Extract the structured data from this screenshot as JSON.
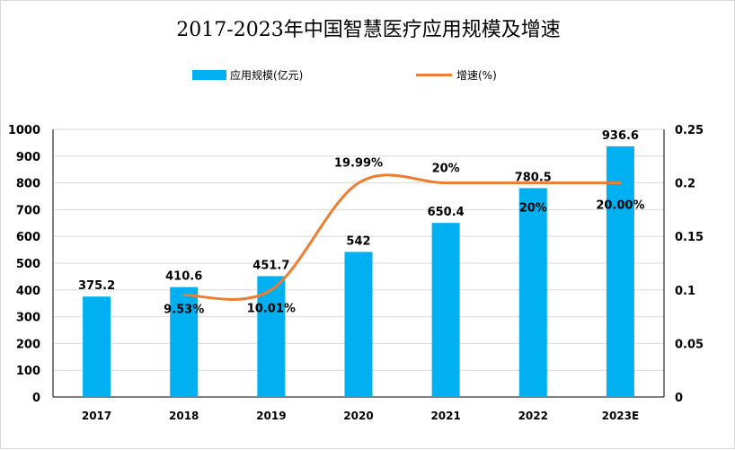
{
  "chart_data": {
    "type": "bar",
    "title": "2017-2023年中国智慧医疗应用规模及增速",
    "categories": [
      "2017",
      "2018",
      "2019",
      "2020",
      "2021",
      "2022",
      "2023E"
    ],
    "series": [
      {
        "name": "应用规模(亿元)",
        "type": "bar",
        "axis": "left",
        "color": "#00b0f0",
        "values": [
          375.2,
          410.6,
          451.7,
          542,
          650.4,
          780.5,
          936.6
        ],
        "labels": [
          "375.2",
          "410.6",
          "451.7",
          "542",
          "650.4",
          "780.5",
          "936.6"
        ]
      },
      {
        "name": "增速(%)",
        "type": "line",
        "axis": "right",
        "color": "#ed7d31",
        "values": [
          null,
          0.0953,
          0.1001,
          0.1999,
          0.2,
          0.2,
          0.2
        ],
        "labels": [
          "",
          "9.53%",
          "10.01%",
          "19.99%",
          "20%",
          "20%",
          "20.00%"
        ]
      }
    ],
    "y_left": {
      "ylim": [
        0,
        1000
      ],
      "ticks": [
        "0",
        "100",
        "200",
        "300",
        "400",
        "500",
        "600",
        "700",
        "800",
        "900",
        "1000"
      ]
    },
    "y_right": {
      "ylim": [
        0,
        0.25
      ],
      "ticks": [
        "0",
        "0.05",
        "0.1",
        "0.15",
        "0.2",
        "0.25"
      ]
    },
    "grid": true,
    "legend_position": "top"
  }
}
